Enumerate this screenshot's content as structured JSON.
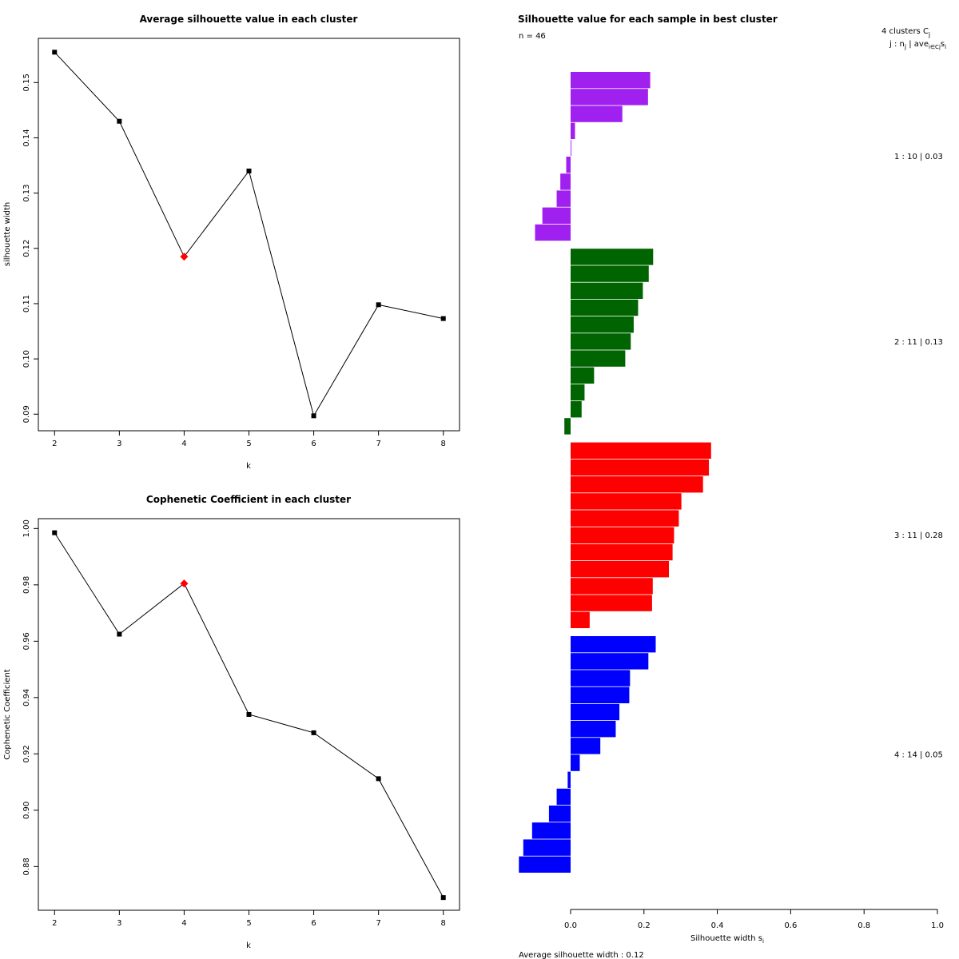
{
  "chart_data": [
    {
      "type": "line",
      "title": "Average silhouette value in each cluster",
      "xlabel": "k",
      "ylabel": "silhouette width",
      "x": [
        2,
        3,
        4,
        5,
        6,
        7,
        8
      ],
      "values": [
        0.1555,
        0.143,
        0.1185,
        0.134,
        0.0897,
        0.1098,
        0.1073
      ],
      "highlight_k": 4,
      "xlim": [
        1.75,
        8.25
      ],
      "ylim": [
        0.087,
        0.158
      ],
      "yticks": [
        "0.09",
        "0.10",
        "0.11",
        "0.12",
        "0.13",
        "0.14",
        "0.15"
      ],
      "xticks": [
        "2",
        "3",
        "4",
        "5",
        "6",
        "7",
        "8"
      ]
    },
    {
      "type": "line",
      "title": "Cophenetic Coefficient in each cluster",
      "xlabel": "k",
      "ylabel": "Cophenetic Coefficient",
      "x": [
        2,
        3,
        4,
        5,
        6,
        7,
        8
      ],
      "values": [
        0.9985,
        0.9625,
        0.9805,
        0.934,
        0.9275,
        0.9112,
        0.869
      ],
      "highlight_k": 4,
      "xlim": [
        1.75,
        8.25
      ],
      "ylim": [
        0.8645,
        1.0035
      ],
      "yticks": [
        "0.88",
        "0.90",
        "0.92",
        "0.94",
        "0.96",
        "0.98",
        "1.00"
      ],
      "xticks": [
        "2",
        "3",
        "4",
        "5",
        "6",
        "7",
        "8"
      ]
    },
    {
      "type": "bar",
      "orientation": "horizontal",
      "title": "Silhouette value for each sample in best cluster",
      "n_label": "n = 46",
      "header_line1": "4  clusters  C",
      "header_sub1": "j",
      "header_line2": "j :  n",
      "header_sub2": "j",
      "header_line3": " | ave",
      "header_sub3": "i∈Cj",
      "header_line4": "s",
      "header_sub4": "i",
      "xlabel": "Silhouette width s",
      "xlabel_sub": "i",
      "footer": "Average silhouette width :  0.12",
      "xlim": [
        0.0,
        1.0
      ],
      "xticks": [
        "0.0",
        "0.2",
        "0.4",
        "0.6",
        "0.8",
        "1.0"
      ],
      "clusters": [
        {
          "label": "1 :   10  |  0.03",
          "color": "#A020F0",
          "values": [
            0.217,
            0.211,
            0.141,
            0.012,
            0.002,
            -0.012,
            -0.028,
            -0.038,
            -0.077,
            -0.097
          ]
        },
        {
          "label": "2 :   11  |  0.13",
          "color": "#006400",
          "values": [
            0.225,
            0.213,
            0.197,
            0.184,
            0.172,
            0.164,
            0.149,
            0.064,
            0.038,
            0.03,
            -0.017
          ]
        },
        {
          "label": "3 :   11  |  0.28",
          "color": "#FF0000",
          "values": [
            0.383,
            0.377,
            0.361,
            0.302,
            0.295,
            0.282,
            0.278,
            0.268,
            0.224,
            0.222,
            0.052
          ]
        },
        {
          "label": "4 :   14  |  0.05",
          "color": "#0000FF",
          "values": [
            0.232,
            0.212,
            0.162,
            0.16,
            0.133,
            0.123,
            0.081,
            0.025,
            -0.008,
            -0.038,
            -0.059,
            -0.105,
            -0.129,
            -0.141
          ]
        }
      ]
    }
  ]
}
